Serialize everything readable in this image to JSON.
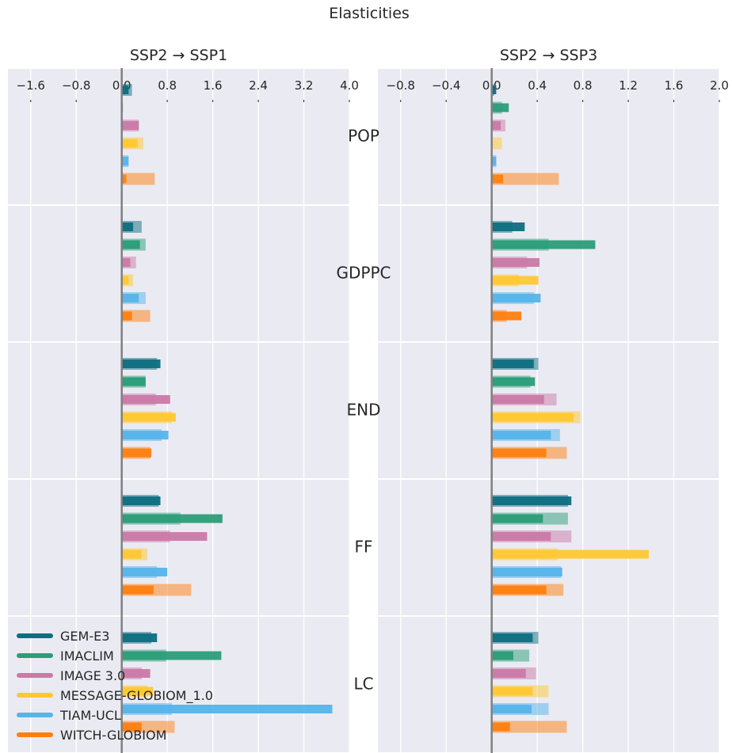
{
  "figure": {
    "title": "Elasticities"
  },
  "colors": {
    "panel_bg": "#eaeaf2",
    "grid": "#ffffff",
    "zero_line": "#808080",
    "models": [
      "#0d6e7f",
      "#2b9d78",
      "#cb79a7",
      "#ffc832",
      "#56b4e9",
      "#ff7f0e"
    ]
  },
  "chart_data": {
    "type": "bar",
    "orientation": "horizontal",
    "categories": [
      "POP",
      "GDPPC",
      "END",
      "FF",
      "LC"
    ],
    "models": [
      "GEM-E3",
      "IMACLIM",
      "IMAGE 3.0",
      "MESSAGE-GLOBIOM_1.0",
      "TIAM-UCL",
      "WITCH-GLOBIOM"
    ],
    "legend": {
      "position": "lower-left of left panel",
      "entries": [
        "GEM-E3",
        "IMACLIM",
        "IMAGE 3.0",
        "MESSAGE-GLOBIOM_1.0",
        "TIAM-UCL",
        "WITCH-GLOBIOM"
      ]
    },
    "grid": true,
    "panels": [
      {
        "title": "SSP2 → SSP1",
        "xlim": [
          -2.0,
          4.0
        ],
        "xticks": [
          -1.6,
          -0.8,
          0.0,
          0.8,
          1.6,
          2.4,
          3.2,
          4.0
        ],
        "xtick_labels": [
          "−1.6",
          "−0.8",
          "0.0",
          "0.8",
          "1.6",
          "2.4",
          "3.2",
          "4.0"
        ],
        "series": [
          {
            "name": "GEM-E3",
            "values": [
              0.12,
              0.2,
              0.68,
              0.68,
              0.62
            ],
            "secondary_values": [
              0.18,
              0.35,
              0.62,
              0.65,
              0.52
            ]
          },
          {
            "name": "IMACLIM",
            "values": [
              0.02,
              0.32,
              0.42,
              1.77,
              1.75
            ],
            "secondary_values": [
              0.0,
              0.42,
              0.42,
              1.03,
              0.78
            ]
          },
          {
            "name": "IMAGE 3.0",
            "values": [
              0.3,
              0.15,
              0.85,
              1.5,
              0.5
            ],
            "secondary_values": [
              0.3,
              0.25,
              0.6,
              0.85,
              0.35
            ]
          },
          {
            "name": "MESSAGE-GLOBIOM_1.0",
            "values": [
              0.28,
              0.12,
              0.95,
              0.35,
              0.55
            ],
            "secondary_values": [
              0.38,
              0.2,
              0.88,
              0.45,
              0.45
            ]
          },
          {
            "name": "TIAM-UCL",
            "values": [
              0.12,
              0.3,
              0.82,
              0.8,
              3.7
            ],
            "secondary_values": [
              0.12,
              0.42,
              0.7,
              0.62,
              0.88
            ]
          },
          {
            "name": "WITCH-GLOBIOM",
            "values": [
              0.08,
              0.18,
              0.52,
              0.56,
              0.35
            ],
            "secondary_values": [
              0.58,
              0.5,
              0.5,
              1.22,
              0.93
            ]
          }
        ]
      },
      {
        "title": "SSP2 → SSP3",
        "xlim": [
          -1.0,
          2.0
        ],
        "xticks": [
          -0.8,
          -0.4,
          0.0,
          0.4,
          0.8,
          1.2,
          1.6,
          2.0
        ],
        "xtick_labels": [
          "−0.8",
          "−0.4",
          "0.0",
          "0.4",
          "0.8",
          "1.2",
          "1.6",
          "2.0"
        ],
        "series": [
          {
            "name": "GEM-E3",
            "values": [
              0.04,
              0.29,
              0.37,
              0.7,
              0.36
            ],
            "secondary_values": [
              0.02,
              0.18,
              0.41,
              0.67,
              0.41
            ]
          },
          {
            "name": "IMACLIM",
            "values": [
              0.15,
              0.91,
              0.38,
              0.45,
              0.19
            ],
            "secondary_values": [
              0.09,
              0.5,
              0.34,
              0.67,
              0.33
            ]
          },
          {
            "name": "IMAGE 3.0",
            "values": [
              0.08,
              0.42,
              0.46,
              0.52,
              0.3
            ],
            "secondary_values": [
              0.12,
              0.31,
              0.57,
              0.7,
              0.39
            ]
          },
          {
            "name": "MESSAGE-GLOBIOM_1.0",
            "values": [
              0.0,
              0.41,
              0.72,
              1.38,
              0.36
            ],
            "secondary_values": [
              0.09,
              0.24,
              0.78,
              0.58,
              0.5
            ]
          },
          {
            "name": "TIAM-UCL",
            "values": [
              0.04,
              0.43,
              0.52,
              0.62,
              0.35
            ],
            "secondary_values": [
              0.04,
              0.37,
              0.6,
              0.61,
              0.5
            ]
          },
          {
            "name": "WITCH-GLOBIOM",
            "values": [
              0.1,
              0.26,
              0.48,
              0.48,
              0.16
            ],
            "secondary_values": [
              0.59,
              0.13,
              0.66,
              0.63,
              0.66
            ]
          }
        ]
      }
    ]
  }
}
